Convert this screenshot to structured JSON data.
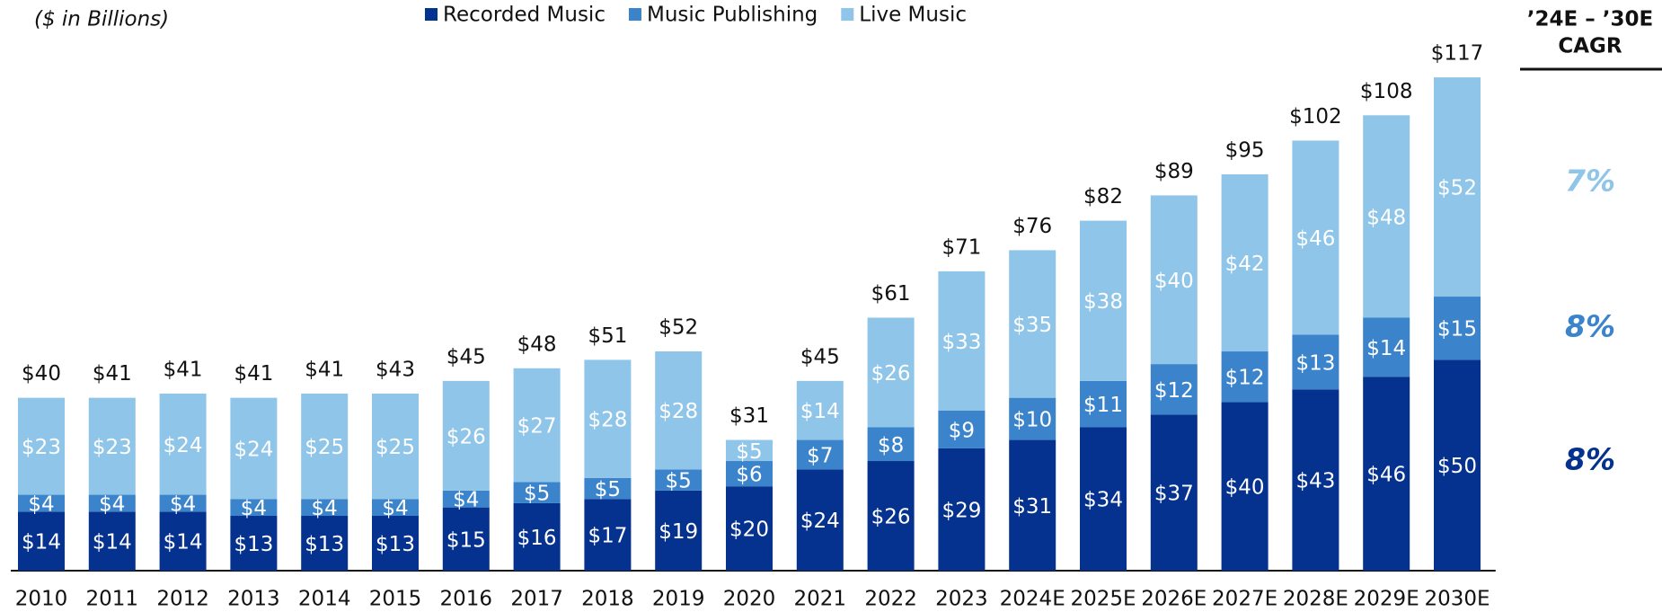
{
  "chart_data": {
    "type": "stacked_bar",
    "subtitle": "($ in Billions)",
    "categories": [
      "2010",
      "2011",
      "2012",
      "2013",
      "2014",
      "2015",
      "2016",
      "2017",
      "2018",
      "2019",
      "2020",
      "2021",
      "2022",
      "2023",
      "2024E",
      "2025E",
      "2026E",
      "2027E",
      "2028E",
      "2029E",
      "2030E"
    ],
    "series": [
      {
        "name": "Recorded Music",
        "color": "#05318f",
        "cagr": "8%",
        "values": [
          14,
          14,
          14,
          13,
          13,
          13,
          15,
          16,
          17,
          19,
          20,
          24,
          26,
          29,
          31,
          34,
          37,
          40,
          43,
          46,
          50
        ],
        "value_labels": [
          "$14",
          "$14",
          "$14",
          "$13",
          "$13",
          "$13",
          "$15",
          "$16",
          "$17",
          "$19",
          "$20",
          "$24",
          "$26",
          "$29",
          "$31",
          "$34",
          "$37",
          "$40",
          "$43",
          "$46",
          "$50"
        ]
      },
      {
        "name": "Music Publishing",
        "color": "#3b84cc",
        "cagr": "8%",
        "values": [
          4,
          4,
          4,
          4,
          4,
          4,
          4,
          5,
          5,
          5,
          6,
          7,
          8,
          9,
          10,
          11,
          12,
          12,
          13,
          14,
          15
        ],
        "value_labels": [
          "$4",
          "$4",
          "$4",
          "$4",
          "$4",
          "$4",
          "$4",
          "$5",
          "$5",
          "$5",
          "$6",
          "$7",
          "$8",
          "$9",
          "$10",
          "$11",
          "$12",
          "$12",
          "$13",
          "$14",
          "$15"
        ]
      },
      {
        "name": "Live Music",
        "color": "#8ec5e8",
        "cagr": "7%",
        "values": [
          23,
          23,
          24,
          24,
          25,
          25,
          26,
          27,
          28,
          28,
          5,
          14,
          26,
          33,
          35,
          38,
          40,
          42,
          46,
          48,
          52
        ],
        "value_labels": [
          "$23",
          "$23",
          "$24",
          "$24",
          "$25",
          "$25",
          "$26",
          "$27",
          "$28",
          "$28",
          "$5",
          "$14",
          "$26",
          "$33",
          "$35",
          "$38",
          "$40",
          "$42",
          "$46",
          "$48",
          "$52"
        ]
      }
    ],
    "totals": [
      40,
      41,
      41,
      41,
      41,
      43,
      45,
      48,
      51,
      52,
      31,
      45,
      61,
      71,
      76,
      82,
      89,
      95,
      102,
      108,
      117
    ],
    "total_labels": [
      "$40",
      "$41",
      "$41",
      "$41",
      "$41",
      "$43",
      "$45",
      "$48",
      "$51",
      "$52",
      "$31",
      "$45",
      "$61",
      "$71",
      "$76",
      "$82",
      "$89",
      "$95",
      "$102",
      "$108",
      "$117"
    ],
    "cagr_title": [
      "’24E – ’30E",
      "CAGR"
    ],
    "ylim": [
      0,
      120
    ]
  }
}
